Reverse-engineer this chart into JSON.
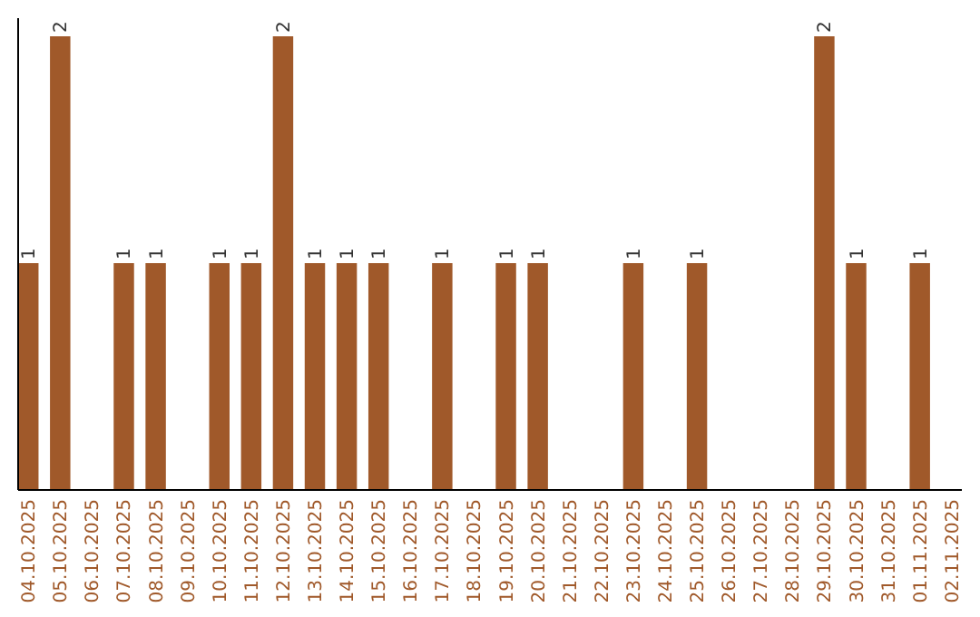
{
  "chart_data": {
    "type": "bar",
    "categories": [
      "04.10.2025",
      "05.10.2025",
      "06.10.2025",
      "07.10.2025",
      "08.10.2025",
      "09.10.2025",
      "10.10.2025",
      "11.10.2025",
      "12.10.2025",
      "13.10.2025",
      "14.10.2025",
      "15.10.2025",
      "16.10.2025",
      "17.10.2025",
      "18.10.2025",
      "19.10.2025",
      "20.10.2025",
      "21.10.2025",
      "22.10.2025",
      "23.10.2025",
      "24.10.2025",
      "25.10.2025",
      "26.10.2025",
      "27.10.2025",
      "28.10.2025",
      "29.10.2025",
      "30.10.2025",
      "31.10.2025",
      "01.11.2025",
      "02.11.2025"
    ],
    "values": [
      1,
      2,
      0,
      1,
      1,
      0,
      1,
      1,
      2,
      1,
      1,
      1,
      0,
      1,
      0,
      1,
      1,
      0,
      0,
      1,
      0,
      1,
      0,
      0,
      0,
      2,
      1,
      0,
      1,
      0
    ],
    "value_labels": [
      "1",
      "2",
      null,
      "1",
      "1",
      null,
      "1",
      "1",
      "2",
      "1",
      "1",
      "1",
      null,
      "1",
      null,
      "1",
      "1",
      null,
      null,
      "1",
      null,
      "1",
      null,
      null,
      null,
      "2",
      "1",
      null,
      "1",
      null
    ],
    "color": "#a0592a",
    "ylim": [
      0,
      2.08
    ],
    "tick_labels": "x"
  }
}
